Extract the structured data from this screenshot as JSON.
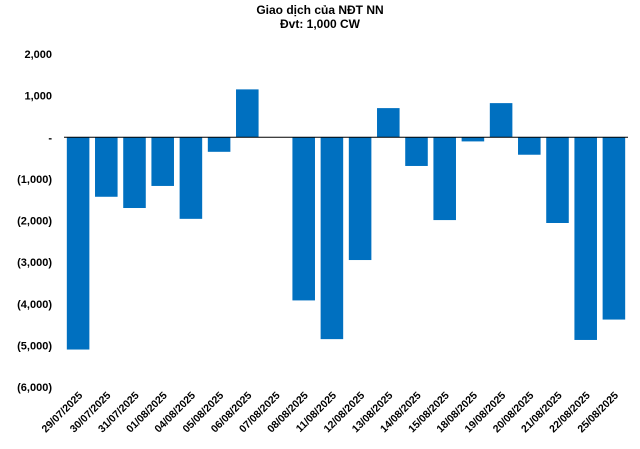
{
  "chart_data": {
    "type": "bar",
    "title": "Giao dịch của NĐT NN",
    "subtitle": "Đvt: 1,000 CW",
    "xlabel": "",
    "ylabel": "",
    "ylim": [
      -6000,
      2000
    ],
    "y_ticks": [
      2000,
      1000,
      0,
      -1000,
      -2000,
      -3000,
      -4000,
      -5000,
      -6000
    ],
    "y_tick_labels": [
      "2,000",
      "1,000",
      "-",
      "(1,000)",
      "(2,000)",
      "(3,000)",
      "(4,000)",
      "(5,000)",
      "(6,000)"
    ],
    "grid": false,
    "legend": "none",
    "bar_color": "#0070C0",
    "categories": [
      "29/07/2025",
      "30/07/2025",
      "31/07/2025",
      "01/08/2025",
      "04/08/2025",
      "05/08/2025",
      "06/08/2025",
      "07/08/2025",
      "08/08/2025",
      "11/08/2025",
      "12/08/2025",
      "13/08/2025",
      "14/08/2025",
      "15/08/2025",
      "18/08/2025",
      "19/08/2025",
      "20/08/2025",
      "21/08/2025",
      "22/08/2025",
      "25/08/2025"
    ],
    "values": [
      -5100,
      -1430,
      -1700,
      -1170,
      -1960,
      -350,
      1150,
      0,
      -3920,
      -4850,
      -2950,
      700,
      -690,
      -1990,
      -100,
      820,
      -420,
      -2060,
      -4870,
      -4380
    ]
  }
}
